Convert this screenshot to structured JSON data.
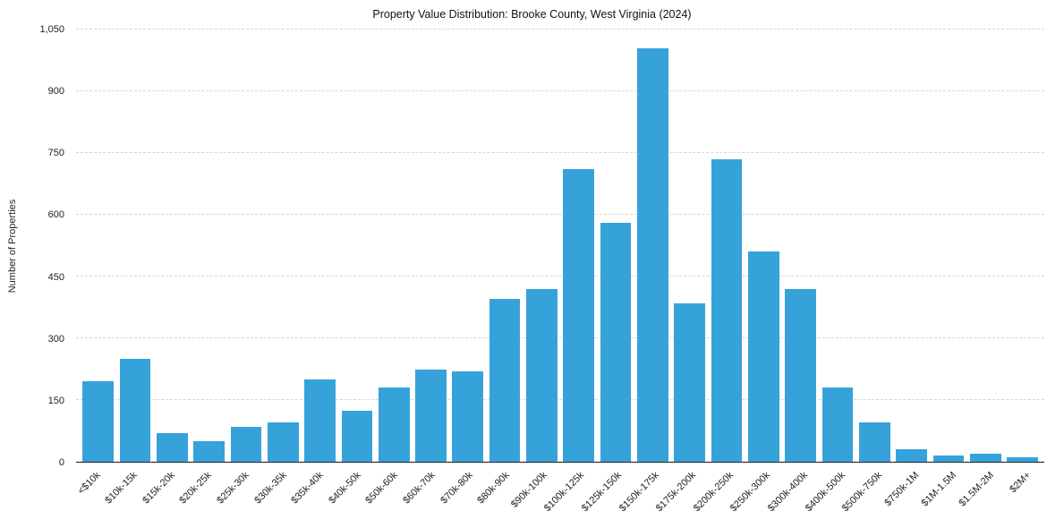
{
  "chart_data": {
    "type": "bar",
    "title": "Property Value Distribution: Brooke County, West Virginia (2024)",
    "xlabel": "",
    "ylabel": "Number of Properties",
    "categories": [
      "<$10k",
      "$10k-15k",
      "$15k-20k",
      "$20k-25k",
      "$25k-30k",
      "$30k-35k",
      "$35k-40k",
      "$40k-50k",
      "$50k-60k",
      "$60k-70k",
      "$70k-80k",
      "$80k-90k",
      "$90k-100k",
      "$100k-125k",
      "$125k-150k",
      "$150k-175k",
      "$175k-200k",
      "$200k-250k",
      "$250k-300k",
      "$300k-400k",
      "$400k-500k",
      "$500k-750k",
      "$750k-1M",
      "$1M-1.5M",
      "$1.5M-2M",
      "$2M+"
    ],
    "values": [
      195,
      250,
      70,
      50,
      85,
      95,
      200,
      125,
      180,
      225,
      220,
      395,
      420,
      710,
      580,
      1005,
      385,
      735,
      510,
      420,
      180,
      95,
      30,
      15,
      20,
      10
    ],
    "ylim": [
      0,
      1050
    ],
    "yticks": [
      0,
      150,
      300,
      450,
      600,
      750,
      900,
      1050
    ],
    "ytick_labels": [
      "0",
      "150",
      "300",
      "450",
      "600",
      "750",
      "900",
      "1,050"
    ],
    "bar_color": "#36a2da",
    "grid": "horizontal-dashed",
    "legend": "none"
  }
}
